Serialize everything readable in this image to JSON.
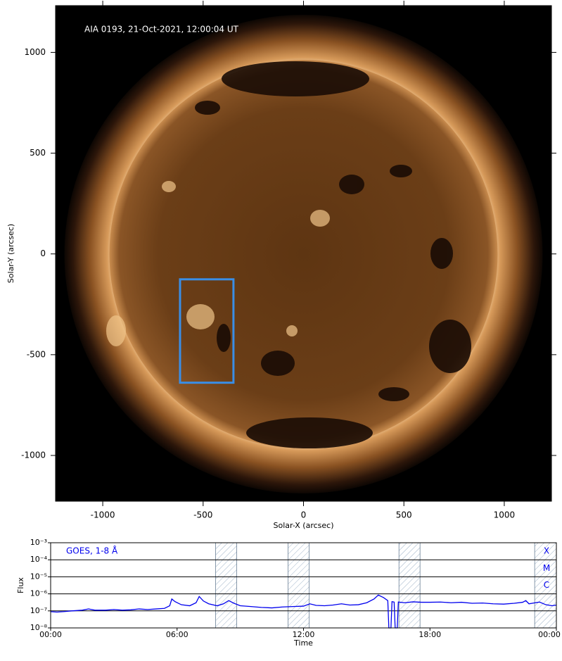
{
  "chart_data": [
    {
      "type": "image",
      "annotation": "AIA 0193, 21-Oct-2021, 12:00:04 UT",
      "xlabel": "Solar-X (arcsec)",
      "ylabel": "Solar-Y (arcsec)",
      "xlim": [
        -1235,
        1235
      ],
      "ylim": [
        -1227,
        1232
      ],
      "xticks": [
        -1000,
        -500,
        0,
        500,
        1000
      ],
      "yticks": [
        -1000,
        -500,
        0,
        500,
        1000
      ],
      "box": {
        "x": [
          -615,
          -349
        ],
        "y": [
          -639,
          -126
        ],
        "color": "#3a8ee6"
      }
    },
    {
      "type": "line",
      "annotation": "GOES, 1-8 Å",
      "xlabel": "Time",
      "ylabel": "Flux",
      "log_y": true,
      "grid": true,
      "xlim": [
        0,
        24
      ],
      "ylim": [
        1e-08,
        0.001
      ],
      "xticks": [
        {
          "value": 0,
          "label": "00:00"
        },
        {
          "value": 6,
          "label": "06:00"
        },
        {
          "value": 12,
          "label": "12:00"
        },
        {
          "value": 18,
          "label": "18:00"
        },
        {
          "value": 24,
          "label": "00:00"
        }
      ],
      "yticks": [
        {
          "value": 1e-08,
          "label": "10⁻⁸"
        },
        {
          "value": 1e-07,
          "label": "10⁻⁷"
        },
        {
          "value": 1e-06,
          "label": "10⁻⁶"
        },
        {
          "value": 1e-05,
          "label": "10⁻⁵"
        },
        {
          "value": 0.0001,
          "label": "10⁻⁴"
        },
        {
          "value": 0.001,
          "label": "10⁻³"
        }
      ],
      "class_labels": [
        "X",
        "M",
        "C"
      ],
      "shaded_spans": [
        [
          7.83,
          8.83
        ],
        [
          11.27,
          12.27
        ],
        [
          16.53,
          17.53
        ],
        [
          22.97,
          24
        ]
      ],
      "series": [
        {
          "color": "#0000ee",
          "x": [
            0,
            0.3,
            0.6,
            1.0,
            1.5,
            1.8,
            2.1,
            2.6,
            3.0,
            3.4,
            3.8,
            4.2,
            4.6,
            5.0,
            5.4,
            5.65,
            5.75,
            5.9,
            6.2,
            6.6,
            6.9,
            7.05,
            7.25,
            7.5,
            7.9,
            8.2,
            8.45,
            8.7,
            9.0,
            9.5,
            10.0,
            10.5,
            11.0,
            11.5,
            12.0,
            12.3,
            12.6,
            13.0,
            13.4,
            13.8,
            14.2,
            14.6,
            15.0,
            15.35,
            15.55,
            15.8,
            16.0,
            16.05,
            16.15,
            16.2,
            16.3,
            16.35,
            16.45,
            16.5,
            16.8,
            17.2,
            17.6,
            18.0,
            18.5,
            19.0,
            19.5,
            20.0,
            20.5,
            21.0,
            21.5,
            22.0,
            22.4,
            22.55,
            22.7,
            23.0,
            23.2,
            23.5,
            23.8,
            24.0
          ],
          "values": [
            9e-08,
            8.5e-08,
            9e-08,
            1e-07,
            1.1e-07,
            1.3e-07,
            1.1e-07,
            1.1e-07,
            1.2e-07,
            1.1e-07,
            1.15e-07,
            1.3e-07,
            1.2e-07,
            1.3e-07,
            1.4e-07,
            2e-07,
            5e-07,
            3.5e-07,
            2.3e-07,
            2e-07,
            3e-07,
            7e-07,
            3.8e-07,
            2.6e-07,
            2e-07,
            2.6e-07,
            4e-07,
            2.8e-07,
            2e-07,
            1.8e-07,
            1.6e-07,
            1.5e-07,
            1.7e-07,
            1.8e-07,
            1.9e-07,
            2.6e-07,
            2.1e-07,
            2e-07,
            2.2e-07,
            2.6e-07,
            2.2e-07,
            2.3e-07,
            3e-07,
            5e-07,
            8.5e-07,
            6e-07,
            4e-07,
            1e-08,
            1e-08,
            3.5e-07,
            3.3e-07,
            1e-08,
            1e-08,
            3.3e-07,
            3e-07,
            3.4e-07,
            3.2e-07,
            3.2e-07,
            3.3e-07,
            3e-07,
            3.2e-07,
            2.8e-07,
            2.9e-07,
            2.6e-07,
            2.5e-07,
            2.8e-07,
            3.2e-07,
            4e-07,
            2.6e-07,
            3e-07,
            3.3e-07,
            2.3e-07,
            2e-07,
            2.2e-07
          ]
        }
      ]
    }
  ]
}
